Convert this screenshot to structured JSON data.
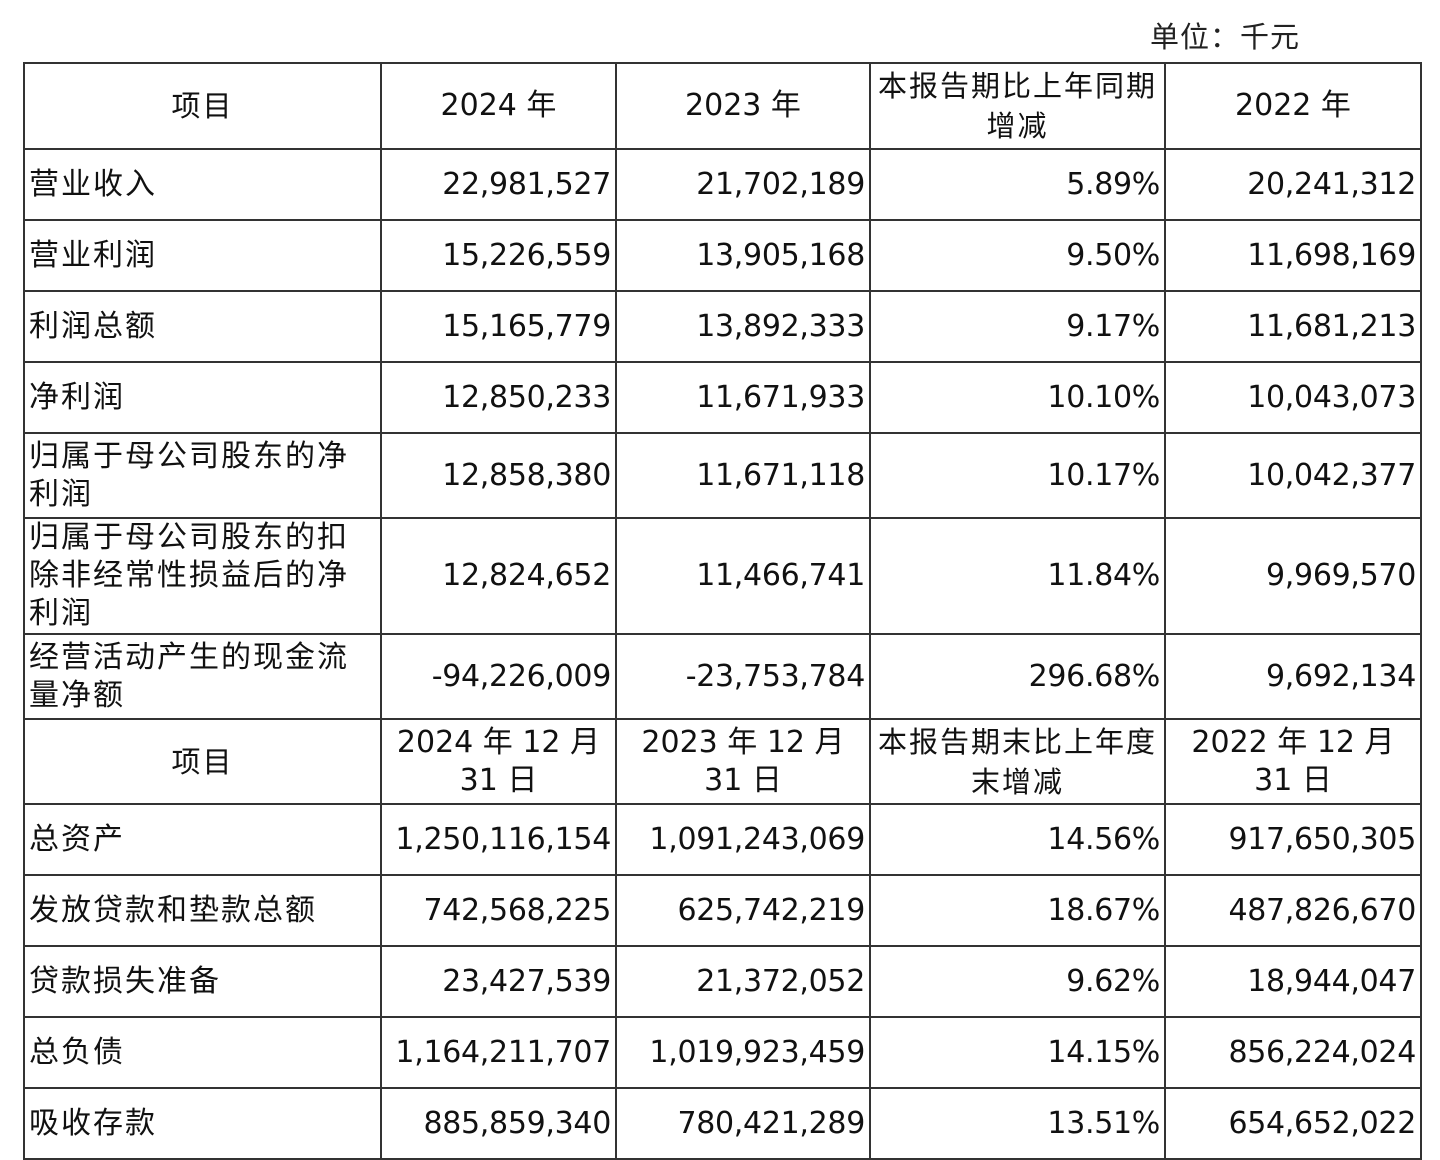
{
  "unit_label": "单位：千元",
  "header1": {
    "item": "项目",
    "col2024": "2024 年",
    "col2023": "2023 年",
    "change": "本报告期比上年同期增减",
    "col2022": "2022 年"
  },
  "rows1": [
    {
      "label": "营业收入",
      "y2024": "22,981,527",
      "y2023": "21,702,189",
      "change": "5.89%",
      "y2022": "20,241,312"
    },
    {
      "label": "营业利润",
      "y2024": "15,226,559",
      "y2023": "13,905,168",
      "change": "9.50%",
      "y2022": "11,698,169"
    },
    {
      "label": "利润总额",
      "y2024": "15,165,779",
      "y2023": "13,892,333",
      "change": "9.17%",
      "y2022": "11,681,213"
    },
    {
      "label": "净利润",
      "y2024": "12,850,233",
      "y2023": "11,671,933",
      "change": "10.10%",
      "y2022": "10,043,073"
    },
    {
      "label": "归属于母公司股东的净利润",
      "y2024": "12,858,380",
      "y2023": "11,671,118",
      "change": "10.17%",
      "y2022": "10,042,377"
    },
    {
      "label": "归属于母公司股东的扣除非经常性损益后的净利润",
      "y2024": "12,824,652",
      "y2023": "11,466,741",
      "change": "11.84%",
      "y2022": "9,969,570"
    },
    {
      "label": "经营活动产生的现金流量净额",
      "y2024": "-94,226,009",
      "y2023": "-23,753,784",
      "change": "296.68%",
      "y2022": "9,692,134"
    }
  ],
  "header2": {
    "item": "项目",
    "col2024": "2024 年 12 月 31 日",
    "col2023": "2023 年 12 月 31 日",
    "change": "本报告期末比上年度末增减",
    "col2022": "2022 年 12 月 31 日"
  },
  "rows2": [
    {
      "label": "总资产",
      "y2024": "1,250,116,154",
      "y2023": "1,091,243,069",
      "change": "14.56%",
      "y2022": "917,650,305"
    },
    {
      "label": "发放贷款和垫款总额",
      "y2024": "742,568,225",
      "y2023": "625,742,219",
      "change": "18.67%",
      "y2022": "487,826,670"
    },
    {
      "label": "贷款损失准备",
      "y2024": "23,427,539",
      "y2023": "21,372,052",
      "change": "9.62%",
      "y2022": "18,944,047"
    },
    {
      "label": "总负债",
      "y2024": "1,164,211,707",
      "y2023": "1,019,923,459",
      "change": "14.15%",
      "y2022": "856,224,024"
    },
    {
      "label": "吸收存款",
      "y2024": "885,859,340",
      "y2023": "780,421,289",
      "change": "13.51%",
      "y2022": "654,652,022"
    }
  ]
}
